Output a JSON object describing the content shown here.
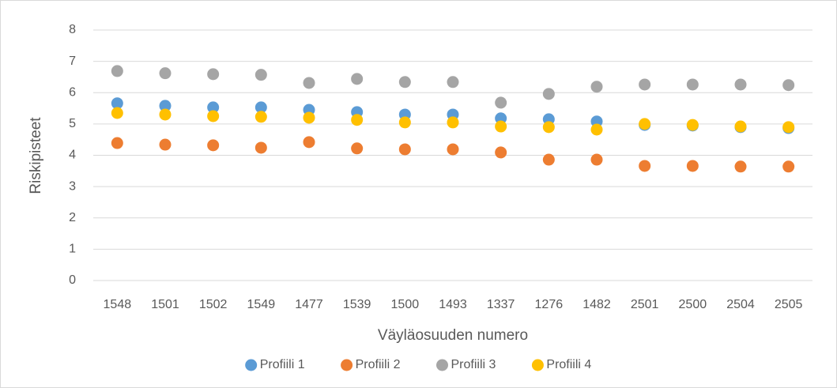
{
  "chart_data": {
    "type": "scatter",
    "x_label": "Väyläosuuden numero",
    "y_label": "Riskipisteet",
    "categories": [
      "1548",
      "1501",
      "1502",
      "1549",
      "1477",
      "1539",
      "1500",
      "1493",
      "1337",
      "1276",
      "1482",
      "2501",
      "2500",
      "2504",
      "2505"
    ],
    "series": [
      {
        "name": "Profiili 1",
        "color": "#5b9bd5",
        "values": [
          5.66,
          5.58,
          5.53,
          5.53,
          5.45,
          5.38,
          5.3,
          5.3,
          5.18,
          5.15,
          5.08,
          4.97,
          4.95,
          4.9,
          4.87
        ]
      },
      {
        "name": "Profiili 2",
        "color": "#ed7d31",
        "values": [
          4.39,
          4.34,
          4.32,
          4.24,
          4.42,
          4.22,
          4.19,
          4.19,
          4.09,
          3.86,
          3.86,
          3.66,
          3.66,
          3.64,
          3.64
        ]
      },
      {
        "name": "Profiili 3",
        "color": "#a5a5a5",
        "values": [
          6.69,
          6.62,
          6.59,
          6.57,
          6.31,
          6.44,
          6.34,
          6.34,
          5.68,
          5.96,
          6.19,
          6.26,
          6.26,
          6.26,
          6.24
        ]
      },
      {
        "name": "Profiili 4",
        "color": "#ffc000",
        "values": [
          5.35,
          5.3,
          5.25,
          5.23,
          5.2,
          5.13,
          5.05,
          5.05,
          4.92,
          4.9,
          4.82,
          5.0,
          4.97,
          4.92,
          4.9
        ]
      }
    ],
    "ylim": [
      0,
      8
    ],
    "yticks": [
      0,
      1,
      2,
      3,
      4,
      5,
      6,
      7,
      8
    ],
    "grid": true,
    "legend": "bottom"
  }
}
